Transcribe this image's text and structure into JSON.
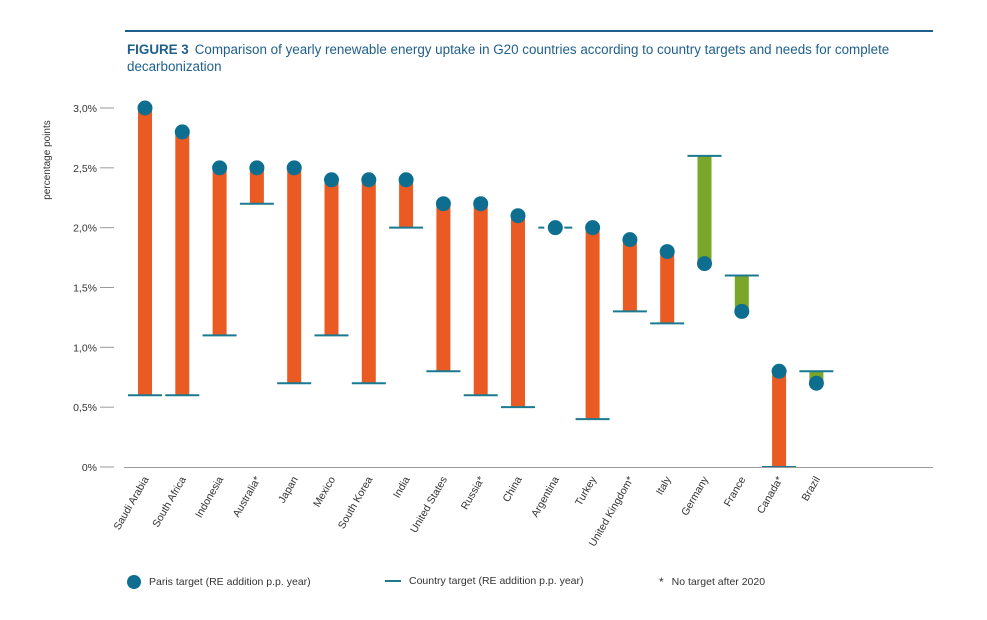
{
  "figure": {
    "label": "FIGURE 3",
    "title": "Comparison of yearly renewable energy uptake in G20 countries according to country targets and needs for complete decarbonization"
  },
  "colors": {
    "title": "#1f5f8b",
    "gap_positive": "#ea5b24",
    "gap_negative": "#7aa62b",
    "paris_dot": "#0d6e8f",
    "country_line": "#1a7a8f",
    "axis": "#9a9a9a"
  },
  "legend": {
    "paris": "Paris target (RE addition p.p. year)",
    "country": "Country target (RE addition p.p. year)",
    "note": "No target after 2020",
    "note_symbol": "*"
  },
  "chart_data": {
    "type": "range-bar",
    "ylabel": "percentage points",
    "ylim": [
      0,
      3.0
    ],
    "yticks": [
      "0%",
      "0,5%",
      "1,0%",
      "1,5%",
      "2,0%",
      "2,5%",
      "3,0%"
    ],
    "categories": [
      "Saudi Arabia",
      "South Africa",
      "Indonesia",
      "Australia*",
      "Japan",
      "Mexico",
      "South Korea",
      "India",
      "United States",
      "Russia*",
      "China",
      "Argentina",
      "Turkey",
      "United Kingdom*",
      "Italy",
      "Germany",
      "France",
      "Canada*",
      "Brazil"
    ],
    "series": [
      {
        "name": "Paris target (RE addition p.p. year)",
        "values": [
          3.0,
          2.8,
          2.5,
          2.5,
          2.5,
          2.4,
          2.4,
          2.4,
          2.2,
          2.2,
          2.1,
          2.0,
          2.0,
          1.9,
          1.8,
          1.7,
          1.3,
          0.8,
          0.7
        ]
      },
      {
        "name": "Country target (RE addition p.p. year)",
        "values": [
          0.6,
          0.6,
          1.1,
          2.2,
          0.7,
          1.1,
          0.7,
          2.0,
          0.8,
          0.6,
          0.5,
          2.0,
          0.4,
          1.3,
          1.2,
          2.6,
          1.6,
          0.0,
          0.8
        ]
      }
    ],
    "grid": false
  }
}
